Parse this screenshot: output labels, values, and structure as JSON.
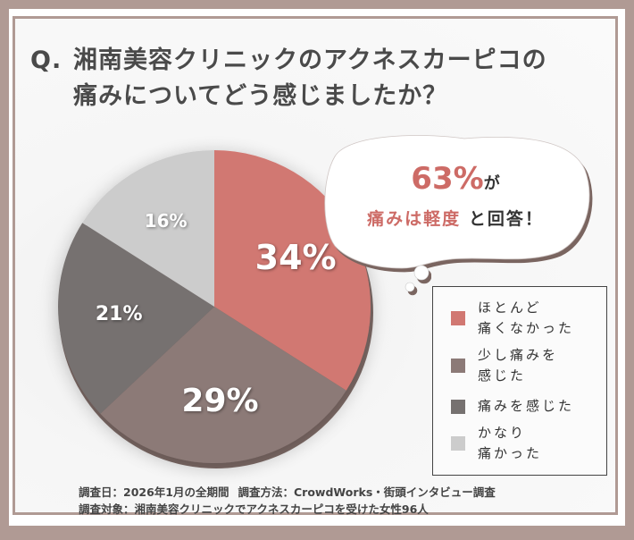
{
  "title": {
    "q_prefix": "Q.",
    "line1": "湘南美容クリニックのアクネスカーピコの",
    "line2": "痛みについてどう感じましたか？"
  },
  "callout": {
    "percent": "63%",
    "percent_suffix": "が",
    "highlight": "痛みは軽度",
    "rest": "と回答！"
  },
  "legend": [
    {
      "line1": "ほとんど",
      "line2": "痛くなかった",
      "color": "#d17872"
    },
    {
      "line1": "少し痛みを",
      "line2": "感じた",
      "color": "#8c7a77"
    },
    {
      "line1": "痛みを感じた",
      "line2": "",
      "color": "#767170"
    },
    {
      "line1": "かなり",
      "line2": "痛かった",
      "color": "#cccccc"
    }
  ],
  "footer": {
    "date_label": "調査日：2026年1月の全期間",
    "method_label": "調査方法：CrowdWorks・街頭インタビュー調査",
    "target_label": "調査対象：湘南美容クリニックでアクネスカーピコを受けた女性96人"
  },
  "chart_data": {
    "type": "pie",
    "title": "Q.湘南美容クリニックのアクネスカーピコの痛みについてどう感じましたか？",
    "categories": [
      "ほとんど痛くなかった",
      "少し痛みを感じた",
      "痛みを感じた",
      "かなり痛かった"
    ],
    "values": [
      34,
      29,
      21,
      16
    ],
    "labels": [
      "34%",
      "29%",
      "21%",
      "16%"
    ],
    "colors": [
      "#d17872",
      "#8c7a77",
      "#767170",
      "#cccccc"
    ],
    "start_angle": "12 o'clock, clockwise",
    "legend_position": "right",
    "annotation": "63%が痛みは軽度と回答！",
    "sample_size": 96
  }
}
